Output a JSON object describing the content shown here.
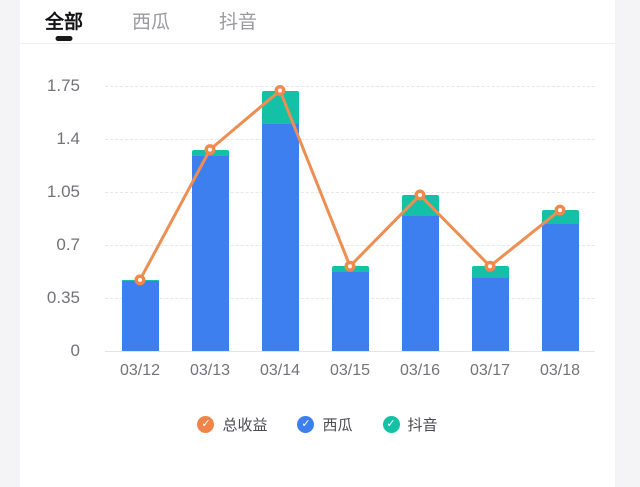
{
  "tabs": {
    "items": [
      {
        "label": "全部",
        "active": true
      },
      {
        "label": "西瓜",
        "active": false
      },
      {
        "label": "抖音",
        "active": false
      }
    ]
  },
  "chart_data": {
    "type": "bar",
    "subtype": "stacked-bars-with-line-overlay",
    "categories": [
      "03/12",
      "03/13",
      "03/14",
      "03/15",
      "03/16",
      "03/17",
      "03/18"
    ],
    "series": [
      {
        "name": "总收益",
        "render": "line",
        "color": "#ed8e52",
        "marker_fill": "#ef8a4d",
        "marker_center": "#ffffff",
        "values": [
          0.47,
          1.33,
          1.72,
          0.56,
          1.03,
          0.56,
          0.93
        ]
      },
      {
        "name": "西瓜",
        "render": "bar",
        "color": "#3e7ff0",
        "values": [
          0.46,
          1.29,
          1.5,
          0.52,
          0.89,
          0.48,
          0.84
        ]
      },
      {
        "name": "抖音",
        "render": "bar",
        "stacked_on": "西瓜",
        "color": "#14c0a6",
        "values": [
          0.01,
          0.04,
          0.22,
          0.04,
          0.14,
          0.08,
          0.09
        ]
      }
    ],
    "ylim": [
      0,
      1.75
    ],
    "yticks": [
      0,
      0.35,
      0.7,
      1.05,
      1.4,
      1.75
    ],
    "grid": "dashed-horizontal",
    "legend_position": "bottom-center"
  },
  "legend": {
    "check_glyph": "✓",
    "items": [
      {
        "label": "总收益",
        "color": "#f0854a"
      },
      {
        "label": "西瓜",
        "color": "#3e7ff0"
      },
      {
        "label": "抖音",
        "color": "#14c0a6"
      }
    ]
  },
  "colors": {
    "page_bg": "#f4f4f6",
    "card_bg": "#ffffff",
    "active_tab": "#141417",
    "inactive_tab": "#9a9aa0",
    "axis_text": "#72727a",
    "gridline": "#e7e7ea"
  }
}
